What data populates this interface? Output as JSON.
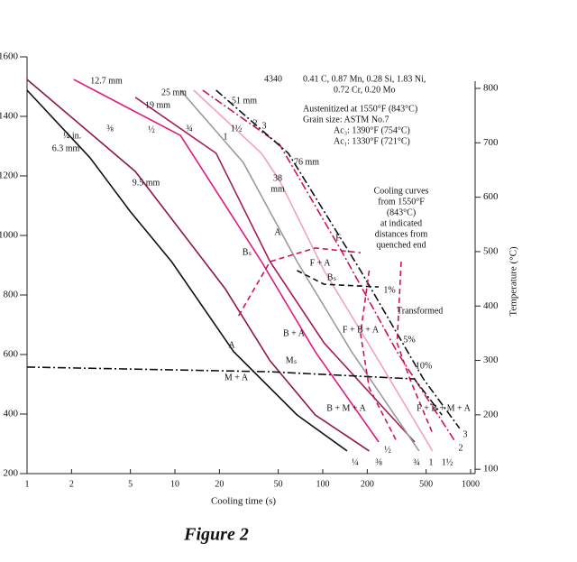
{
  "chart_data": {
    "type": "line",
    "caption": "Figure 2",
    "x_label": "Cooling time (s)",
    "y2_label": "Temperature (°C)",
    "x_scale": "log",
    "xlim": [
      1,
      1000
    ],
    "xticks": [
      1,
      2,
      5,
      10,
      20,
      50,
      100,
      200,
      500,
      1000
    ],
    "ylim": [
      200,
      1600
    ],
    "yticks": [
      200,
      400,
      600,
      800,
      1000,
      1200,
      1400,
      1600
    ],
    "y2lim": [
      92,
      858
    ],
    "y2ticks": [
      100,
      200,
      300,
      400,
      500,
      600,
      700,
      800
    ],
    "series": [
      {
        "color": "#111111",
        "style": "solid",
        "x": [
          1,
          2.67,
          5,
          9.5,
          25,
          67,
          146
        ],
        "values": [
          1488,
          1261,
          1080,
          912,
          609,
          397,
          276
        ]
      },
      {
        "color": "#8e1650",
        "style": "solid",
        "x": [
          1,
          5.4,
          21.9,
          44,
          89,
          206
        ],
        "values": [
          1524,
          1215,
          821,
          579,
          397,
          276
        ]
      },
      {
        "color": "#e2177f",
        "style": "solid",
        "x": [
          2.07,
          10.9,
          38.5,
          89,
          239
        ],
        "values": [
          1524,
          1336,
          912,
          609,
          306
        ]
      },
      {
        "color": "#a61a5c",
        "style": "solid",
        "x": [
          5.4,
          19,
          44,
          102,
          418
        ],
        "values": [
          1464,
          1276,
          912,
          639,
          306
        ]
      },
      {
        "color": "#9a9a9a",
        "style": "solid",
        "x": [
          10.9,
          29,
          67,
          157,
          448
        ],
        "values": [
          1488,
          1245,
          912,
          609,
          276
        ]
      },
      {
        "color": "#f4a0c2",
        "style": "solid",
        "x": [
          13.4,
          38.5,
          51,
          102,
          239,
          552
        ],
        "values": [
          1488,
          1276,
          1185,
          882,
          579,
          276
        ]
      },
      {
        "color": "#d0125d",
        "style": "dashdot",
        "x": [
          15.4,
          51,
          136,
          318,
          790
        ],
        "values": [
          1488,
          1306,
          942,
          609,
          306
        ]
      },
      {
        "color": "#111111",
        "style": "dashdot",
        "x": [
          19,
          58.5,
          180,
          480,
          843
        ],
        "values": [
          1488,
          1276,
          882,
          518,
          352
        ]
      },
      {
        "color": "#d0125d",
        "style": "dashed",
        "x": [
          27,
          44,
          89,
          180
        ],
        "values": [
          730,
          912,
          958,
          942
        ]
      },
      {
        "color": "#111111",
        "style": "dashed",
        "x": [
          67,
          102,
          239
        ],
        "values": [
          882,
          836,
          827
        ]
      },
      {
        "color": "#d0125d",
        "style": "dashed",
        "x": [
          206,
          180,
          206,
          318
        ],
        "values": [
          882,
          670,
          488,
          306
        ]
      },
      {
        "color": "#d0125d",
        "style": "dashed",
        "x": [
          339,
          318,
          388,
          552
        ],
        "values": [
          912,
          639,
          518,
          336
        ]
      },
      {
        "color": "#111111",
        "style": "dashdot",
        "x": [
          1,
          44,
          417,
          640
        ],
        "values": [
          558,
          542,
          518,
          397
        ]
      }
    ],
    "annotations": [
      "4340",
      "0.41 C, 0.87 Mn, 0.28 Si, 1.83 Ni,",
      "0.72 Cr, 0.20 Mo",
      "Austenitized at 1550°F (843°C)",
      "Grain size: ASTM No.7",
      "Ac₃: 1390°F (754°C)",
      "Ac₁: 1330°F (721°C)",
      "Cooling curves",
      "from 1550°F",
      "(843°C)",
      "at indicated",
      "distances from",
      "quenched end",
      "1%",
      "Transformed",
      "5%",
      "10%",
      "F",
      "F + A",
      "Bₛ",
      "Bₛ",
      "A",
      "B + A",
      "F + B + A",
      "Mₛ",
      "M + A",
      "A",
      "B + M + A",
      "F + B + M + A",
      "12.7 mm",
      "25 mm",
      "19 mm",
      "51 mm",
      "76 mm",
      "38",
      "mm",
      "9.5 mm",
      "6.3 mm",
      "¼ in.",
      "⅜",
      "½",
      "¾",
      "1",
      "1½",
      "2",
      "3",
      "¼",
      "⅜",
      "½",
      "¾",
      "1",
      "1½",
      "2",
      "3"
    ]
  }
}
